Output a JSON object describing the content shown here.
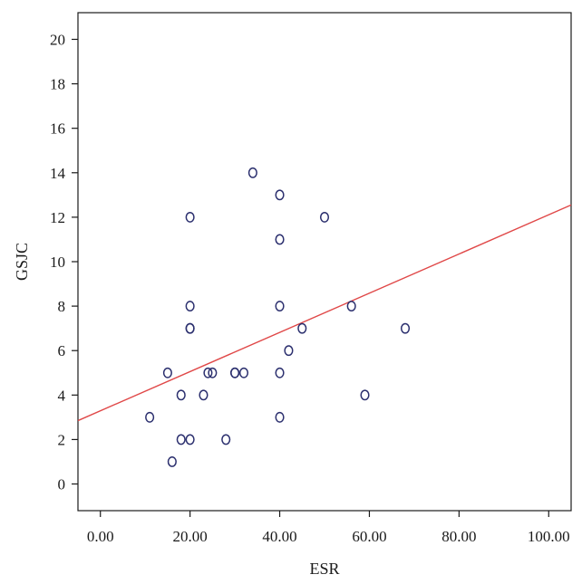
{
  "chart_data": {
    "type": "scatter",
    "title": "",
    "xlabel": "ESR",
    "ylabel": "GSJC",
    "xlim": [
      -5,
      105
    ],
    "ylim": [
      -1.2,
      21.2
    ],
    "xticks": [
      0,
      20,
      40,
      60,
      80,
      100
    ],
    "xtick_labels": [
      "0.00",
      "20.00",
      "40.00",
      "60.00",
      "80.00",
      "100.00"
    ],
    "yticks": [
      0,
      2,
      4,
      6,
      8,
      10,
      12,
      14,
      16,
      18,
      20
    ],
    "ytick_labels": [
      "0",
      "2",
      "4",
      "6",
      "8",
      "10",
      "12",
      "14",
      "16",
      "18",
      "20"
    ],
    "grid": false,
    "legend": "none",
    "marker": "open-circle",
    "marker_color": "#2b2f6e",
    "fit_line_color": "#e04848",
    "points": [
      {
        "x": 11,
        "y": 3
      },
      {
        "x": 15,
        "y": 5
      },
      {
        "x": 16,
        "y": 1
      },
      {
        "x": 18,
        "y": 4
      },
      {
        "x": 18,
        "y": 2
      },
      {
        "x": 20,
        "y": 2
      },
      {
        "x": 20,
        "y": 7
      },
      {
        "x": 20,
        "y": 7
      },
      {
        "x": 20,
        "y": 8
      },
      {
        "x": 20,
        "y": 12
      },
      {
        "x": 23,
        "y": 4
      },
      {
        "x": 24,
        "y": 5
      },
      {
        "x": 25,
        "y": 5
      },
      {
        "x": 28,
        "y": 2
      },
      {
        "x": 30,
        "y": 5
      },
      {
        "x": 30,
        "y": 5
      },
      {
        "x": 32,
        "y": 5
      },
      {
        "x": 34,
        "y": 14
      },
      {
        "x": 40,
        "y": 13
      },
      {
        "x": 40,
        "y": 11
      },
      {
        "x": 40,
        "y": 8
      },
      {
        "x": 40,
        "y": 5
      },
      {
        "x": 40,
        "y": 3
      },
      {
        "x": 42,
        "y": 6
      },
      {
        "x": 45,
        "y": 7
      },
      {
        "x": 50,
        "y": 12
      },
      {
        "x": 56,
        "y": 8
      },
      {
        "x": 59,
        "y": 4
      },
      {
        "x": 68,
        "y": 7
      }
    ],
    "fit_line": {
      "x": [
        -5,
        105
      ],
      "y": [
        2.85,
        12.55
      ]
    }
  }
}
